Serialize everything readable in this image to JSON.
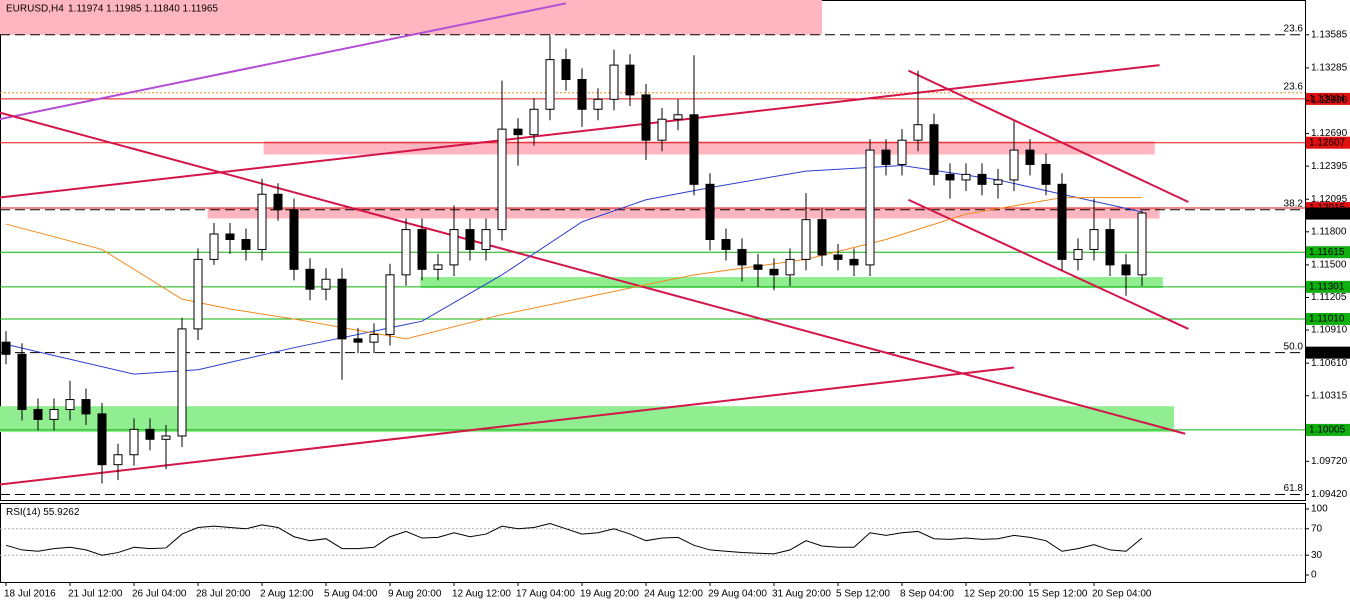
{
  "chart_data": {
    "type": "candlestick",
    "symbol": "EURUSD,H4",
    "quote": "1.11974 1.11985 1.11840 1.11965",
    "categories": [
      "18 Jul 2016",
      null,
      null,
      null,
      "21 Jul 12:00",
      null,
      null,
      null,
      "26 Jul 04:00",
      null,
      null,
      null,
      "28 Jul 20:00",
      null,
      null,
      null,
      "2 Aug 12:00",
      null,
      null,
      null,
      "5 Aug 04:00",
      null,
      null,
      null,
      "9 Aug 20:00",
      null,
      null,
      null,
      "12 Aug 12:00",
      null,
      null,
      null,
      "17 Aug 04:00",
      null,
      null,
      null,
      "19 Aug 20:00",
      null,
      null,
      null,
      "24 Aug 12:00",
      null,
      null,
      null,
      "29 Aug 04:00",
      null,
      null,
      null,
      "31 Aug 20:00",
      null,
      null,
      null,
      "5 Sep 12:00",
      null,
      null,
      null,
      "8 Sep 04:00",
      null,
      null,
      null,
      "12 Sep 20:00",
      null,
      null,
      null,
      "15 Sep 12:00",
      null,
      null,
      null,
      "20 Sep 04:00",
      null,
      null,
      null
    ],
    "open": [
      1.108,
      1.1069,
      1.1019,
      1.101,
      1.1019,
      1.1028,
      1.1015,
      1.0969,
      1.0978,
      1.1001,
      1.0992,
      1.0995,
      1.1092,
      1.1155,
      1.1178,
      1.1173,
      1.1164,
      1.1214,
      1.12,
      1.1146,
      1.1128,
      1.1137,
      1.1083,
      1.108,
      1.1087,
      1.1141,
      1.1182,
      1.1146,
      1.115,
      1.1182,
      1.1164,
      1.1182,
      1.1273,
      1.1268,
      1.1291,
      1.1336,
      1.1318,
      1.1291,
      1.13,
      1.1331,
      1.1304,
      1.1263,
      1.1282,
      1.1286,
      1.1223,
      1.1173,
      1.1164,
      1.115,
      1.1146,
      1.1141,
      1.1155,
      1.1191,
      1.1159,
      1.1155,
      1.115,
      1.1254,
      1.1241,
      1.1263,
      1.1277,
      1.1232,
      1.1227,
      1.1232,
      1.1223,
      1.1227,
      1.1254,
      1.1241,
      1.1223,
      1.1155,
      1.1164,
      1.1182,
      1.115,
      1.1141
    ],
    "high": [
      1.109,
      1.1079,
      1.1029,
      1.1029,
      1.1045,
      1.1038,
      1.1025,
      1.0988,
      1.1011,
      1.1011,
      1.1005,
      1.1102,
      1.1165,
      1.1188,
      1.1188,
      1.1183,
      1.1228,
      1.1224,
      1.121,
      1.1156,
      1.1147,
      1.1147,
      1.1093,
      1.1097,
      1.1151,
      1.1192,
      1.1192,
      1.116,
      1.1204,
      1.1192,
      1.1192,
      1.1317,
      1.1283,
      1.1301,
      1.1358,
      1.1346,
      1.1328,
      1.131,
      1.1345,
      1.1341,
      1.1314,
      1.1292,
      1.13,
      1.134,
      1.1233,
      1.1183,
      1.1174,
      1.116,
      1.1156,
      1.1165,
      1.1215,
      1.1201,
      1.1169,
      1.1165,
      1.1264,
      1.1264,
      1.1273,
      1.1326,
      1.1287,
      1.1242,
      1.1242,
      1.1242,
      1.1237,
      1.128,
      1.1264,
      1.1251,
      1.1233,
      1.1174,
      1.121,
      1.1192,
      1.116,
      1.1199
    ],
    "low": [
      1.106,
      1.1009,
      1.1,
      1.1,
      1.1009,
      1.1005,
      1.0952,
      1.0955,
      1.0968,
      1.0982,
      1.0965,
      1.0985,
      1.1082,
      1.115,
      1.116,
      1.1154,
      1.1154,
      1.119,
      1.1136,
      1.1118,
      1.1118,
      1.1046,
      1.107,
      1.107,
      1.1077,
      1.1131,
      1.1136,
      1.1136,
      1.114,
      1.1154,
      1.1154,
      1.1172,
      1.124,
      1.1258,
      1.1281,
      1.1308,
      1.1275,
      1.1281,
      1.129,
      1.1294,
      1.1245,
      1.1253,
      1.1272,
      1.1213,
      1.1163,
      1.1154,
      1.1135,
      1.113,
      1.1127,
      1.1131,
      1.1145,
      1.1149,
      1.1145,
      1.114,
      1.114,
      1.1231,
      1.1231,
      1.1253,
      1.1222,
      1.121,
      1.1217,
      1.1213,
      1.121,
      1.1217,
      1.1231,
      1.1213,
      1.1145,
      1.1145,
      1.1154,
      1.114,
      1.1122,
      1.1131
    ],
    "close": [
      1.1069,
      1.1019,
      1.101,
      1.1019,
      1.1028,
      1.1015,
      1.0969,
      1.0978,
      1.1001,
      1.0992,
      1.0995,
      1.1092,
      1.1155,
      1.1178,
      1.1173,
      1.1164,
      1.1214,
      1.12,
      1.1146,
      1.1128,
      1.1137,
      1.1083,
      1.108,
      1.1087,
      1.1141,
      1.1182,
      1.1146,
      1.115,
      1.1182,
      1.1164,
      1.1182,
      1.1273,
      1.1268,
      1.1291,
      1.1336,
      1.1318,
      1.1291,
      1.13,
      1.1331,
      1.1304,
      1.1263,
      1.1282,
      1.1286,
      1.1223,
      1.1173,
      1.1164,
      1.115,
      1.1146,
      1.1141,
      1.1155,
      1.1191,
      1.1159,
      1.1155,
      1.115,
      1.1254,
      1.1241,
      1.1263,
      1.1277,
      1.1232,
      1.1227,
      1.1232,
      1.1223,
      1.1227,
      1.1254,
      1.1241,
      1.1223,
      1.1155,
      1.1164,
      1.1182,
      1.115,
      1.1141,
      1.1197
    ],
    "ylim": [
      1.0937,
      1.139
    ],
    "yticks": [
      1.13585,
      1.13285,
      {
        "value": 1.1299,
        "label": "1.12990"
      },
      {
        "value": 1.1269,
        "label": "1.12690"
      },
      1.12395,
      1.12095,
      {
        "value": 1.118,
        "label": "1.11800"
      },
      {
        "value": 1.115,
        "label": "1.11500"
      },
      1.11205,
      {
        "value": 1.1091,
        "label": "1.10910"
      },
      {
        "value": 1.1061,
        "label": "1.10610"
      },
      1.10315,
      {
        "value": 1.0972,
        "label": "1.09720"
      },
      {
        "value": 1.0942,
        "label": "1.09420"
      }
    ],
    "moving_averages": [
      {
        "color": "#2a3fcf",
        "x": [
          0,
          8,
          12,
          18,
          26,
          31,
          36,
          40,
          44,
          50,
          56,
          62,
          66,
          71
        ],
        "values": [
          1.1078,
          1.1051,
          1.1055,
          1.1075,
          1.1099,
          1.1141,
          1.1189,
          1.1209,
          1.122,
          1.1235,
          1.124,
          1.1227,
          1.1214,
          1.1198
        ]
      },
      {
        "color": "#f28a1e",
        "x": [
          0,
          6,
          11,
          14,
          18,
          25,
          31,
          37,
          43,
          50,
          55,
          60,
          66,
          71
        ],
        "values": [
          1.1187,
          1.1164,
          1.1119,
          1.111,
          1.1101,
          1.1083,
          1.1105,
          1.1123,
          1.1141,
          1.1155,
          1.1173,
          1.1196,
          1.1211,
          1.1211
        ]
      }
    ],
    "zones": [
      {
        "color": "#ffb6c1",
        "start": -0.4,
        "end": 51,
        "from": 1.139,
        "to": 1.13585
      },
      {
        "color": "#ffb6c1",
        "start": 16.1,
        "end": 71.8,
        "from": 1.1262,
        "to": 1.125
      },
      {
        "color": "#ffb6c1",
        "start": 12.6,
        "end": 72.1,
        "from": 1.1202,
        "to": 1.1192
      },
      {
        "color": "#90ee90",
        "start": 25.9,
        "end": 72.3,
        "from": 1.1139,
        "to": 1.1129
      },
      {
        "color": "#90ee90",
        "start": -0.4,
        "end": 73,
        "from": 1.1022,
        "to": 1.09985
      }
    ],
    "trend_lines": [
      {
        "color": "#b24fd6",
        "x": [
          -0.4,
          35
        ],
        "values": [
          1.1282,
          1.1387
        ]
      },
      {
        "color": "#d4154a",
        "x": [
          -0.4,
          73.7
        ],
        "values": [
          1.1288,
          1.0997
        ]
      },
      {
        "color": "#d4154a",
        "x": [
          -0.4,
          72.1
        ],
        "values": [
          1.1211,
          1.1331
        ]
      },
      {
        "color": "#d4154a",
        "x": [
          -0.4,
          63
        ],
        "values": [
          1.0951,
          1.1057
        ]
      },
      {
        "color": "#d4154a",
        "x": [
          56.4,
          73.9
        ],
        "values": [
          1.1326,
          1.1207
        ]
      },
      {
        "color": "#d4154a",
        "x": [
          56.4,
          73.9
        ],
        "values": [
          1.1209,
          1.1092
        ]
      }
    ],
    "fib_levels": {
      "ratios": [
        23.6,
        23.6,
        38.2,
        {
          "value": 50,
          "label": "50.0"
        },
        61.8
      ],
      "prices": [
        1.13585,
        1.1306,
        1.12,
        1.10705,
        1.0942
      ],
      "colors": [
        "#000000",
        "#f28a1e",
        "#000000",
        "#000000",
        "#000000"
      ]
    },
    "levels": [
      {
        "value": 1.13004,
        "color": "#e01010"
      },
      {
        "value": 1.12607,
        "color": "#e01010"
      },
      {
        "value": 1.12015,
        "color": "#e01010"
      },
      {
        "value": 1.11965,
        "color": "#000000"
      },
      {
        "value": 1.11615,
        "color": "#10b010"
      },
      {
        "value": 1.11301,
        "color": "#10b010"
      },
      {
        "value": {
          "value": 1.1101,
          "label": "1.11010"
        },
        "color": "#10b010"
      },
      {
        "value": 1.10705,
        "color": "#000000"
      },
      {
        "value": 1.10005,
        "color": "#10b010"
      }
    ],
    "rsi": {
      "title": "RSI(14)",
      "ylim": [
        0,
        100
      ],
      "yticks": [
        0,
        30,
        70,
        100
      ],
      "levels": [
        30,
        70
      ],
      "values": [
        45,
        38,
        36,
        40,
        42,
        38,
        30,
        34,
        42,
        40,
        41,
        62,
        72,
        74,
        72,
        70,
        76,
        72,
        58,
        52,
        55,
        40,
        40,
        42,
        58,
        66,
        56,
        57,
        64,
        58,
        62,
        74,
        70,
        72,
        78,
        70,
        62,
        64,
        70,
        62,
        52,
        56,
        57,
        45,
        38,
        36,
        34,
        33,
        32,
        38,
        52,
        44,
        42,
        42,
        64,
        60,
        64,
        66,
        55,
        54,
        56,
        54,
        55,
        60,
        57,
        52,
        36,
        40,
        46,
        38,
        36,
        55.9262
      ]
    }
  }
}
